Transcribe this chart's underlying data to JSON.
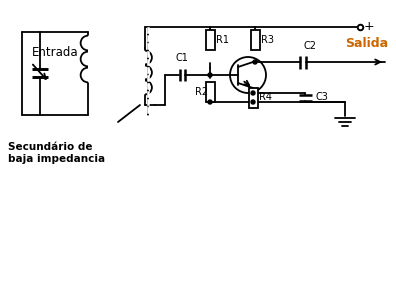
{
  "background_color": "#ffffff",
  "line_color": "#000000",
  "orange_color": "#CC6600",
  "label_entrada": "Entrada",
  "label_salida": "Salida",
  "label_secundario": "Secundário de\nbaja impedancia",
  "label_plus": "+",
  "labels": {
    "R1": "R1",
    "R2": "R2",
    "R3": "R3",
    "R4": "R4",
    "C1": "C1",
    "C2": "C2",
    "C3": "C3"
  }
}
